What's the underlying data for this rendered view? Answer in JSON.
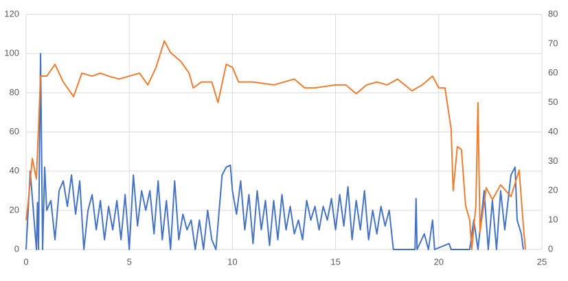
{
  "chart_data": {
    "type": "line",
    "xlim": [
      0,
      25
    ],
    "xticks": [
      0,
      5,
      10,
      15,
      20,
      25
    ],
    "ylim": [
      0,
      120
    ],
    "yticks": [
      0,
      20,
      40,
      60,
      80,
      100,
      120
    ],
    "y2lim": [
      0,
      80
    ],
    "y2ticks": [
      0,
      10,
      20,
      30,
      40,
      50,
      60,
      70,
      80
    ],
    "grid": true,
    "series": [
      {
        "color": "#4472c4",
        "x": [
          0,
          0.2,
          0.35,
          0.5,
          0.55,
          0.6,
          0.7,
          0.8,
          0.9,
          1.0,
          1.2,
          1.4,
          1.6,
          1.8,
          2.0,
          2.2,
          2.4,
          2.6,
          2.8,
          3.0,
          3.2,
          3.4,
          3.6,
          3.8,
          4.0,
          4.2,
          4.4,
          4.6,
          4.8,
          5.0,
          5.2,
          5.4,
          5.6,
          5.8,
          6.0,
          6.2,
          6.4,
          6.6,
          6.8,
          7.0,
          7.2,
          7.4,
          7.6,
          7.8,
          8.0,
          8.2,
          8.4,
          8.6,
          8.8,
          9.0,
          9.2,
          9.5,
          9.7,
          9.9,
          10.0,
          10.2,
          10.4,
          10.6,
          10.8,
          11.0,
          11.2,
          11.4,
          11.6,
          11.8,
          12.0,
          12.2,
          12.4,
          12.6,
          12.8,
          13.0,
          13.2,
          13.4,
          13.6,
          13.8,
          14.0,
          14.2,
          14.4,
          14.6,
          14.8,
          15.0,
          15.2,
          15.4,
          15.6,
          15.8,
          16.0,
          16.2,
          16.4,
          16.6,
          16.8,
          17.0,
          17.2,
          17.4,
          17.6,
          17.8,
          18.3,
          18.85,
          18.9,
          18.95,
          19.3,
          19.5,
          19.7,
          19.8,
          20.5,
          20.6,
          21.0,
          21.5,
          21.7,
          21.9,
          22.2,
          22.4,
          22.6,
          22.8,
          23.0,
          23.2,
          23.5,
          23.7,
          23.8,
          24.0,
          24.1
        ],
        "values": [
          0,
          40,
          20,
          0,
          24,
          0,
          100,
          0,
          42,
          20,
          25,
          5,
          30,
          35,
          22,
          38,
          18,
          35,
          0,
          20,
          28,
          10,
          25,
          5,
          22,
          10,
          25,
          5,
          28,
          0,
          38,
          12,
          30,
          20,
          30,
          8,
          35,
          5,
          25,
          0,
          35,
          5,
          18,
          10,
          15,
          0,
          15,
          0,
          20,
          5,
          0,
          38,
          42,
          43,
          30,
          18,
          35,
          10,
          28,
          3,
          30,
          10,
          25,
          2,
          25,
          5,
          28,
          10,
          22,
          8,
          15,
          5,
          25,
          15,
          22,
          10,
          22,
          15,
          26,
          10,
          28,
          12,
          32,
          5,
          25,
          10,
          30,
          5,
          20,
          8,
          22,
          12,
          20,
          0,
          0,
          0,
          26,
          0,
          8,
          0,
          15,
          0,
          3,
          0,
          0,
          0,
          15,
          0,
          30,
          0,
          25,
          0,
          30,
          10,
          38,
          42,
          15,
          8,
          0
        ]
      },
      {
        "color": "#ed7d31",
        "axis": "y2",
        "x": [
          0,
          0.1,
          0.3,
          0.5,
          0.7,
          1.0,
          1.4,
          1.8,
          2.3,
          2.7,
          3.2,
          3.6,
          4.0,
          4.5,
          5.0,
          5.5,
          5.9,
          6.3,
          6.7,
          7.0,
          7.5,
          7.9,
          8.1,
          8.5,
          9.0,
          9.3,
          9.7,
          10.0,
          10.3,
          11,
          12,
          13,
          13.5,
          14,
          15,
          15.5,
          16,
          16.5,
          17,
          17.5,
          18,
          18.7,
          19.2,
          19.7,
          20.0,
          20.3,
          20.6,
          20.7,
          20.9,
          21.1,
          21.3,
          21.5,
          21.6,
          21.8,
          21.9,
          22.0,
          22.3,
          22.6,
          23.0,
          23.5,
          23.9,
          24.1,
          24.2
        ],
        "values": [
          10,
          16,
          31,
          24,
          59,
          59,
          63,
          57,
          52,
          60,
          59,
          60,
          59,
          58,
          59,
          60,
          56,
          62,
          71,
          67,
          64,
          60,
          55,
          57,
          57,
          50,
          63,
          62,
          57,
          57,
          56,
          58,
          55,
          55,
          56,
          56,
          53,
          56,
          57,
          56,
          58,
          54,
          56,
          59,
          55,
          55,
          41,
          20,
          35,
          34,
          15,
          10,
          0,
          15,
          50,
          6,
          21,
          17,
          22,
          18,
          27,
          8,
          0
        ]
      }
    ]
  }
}
